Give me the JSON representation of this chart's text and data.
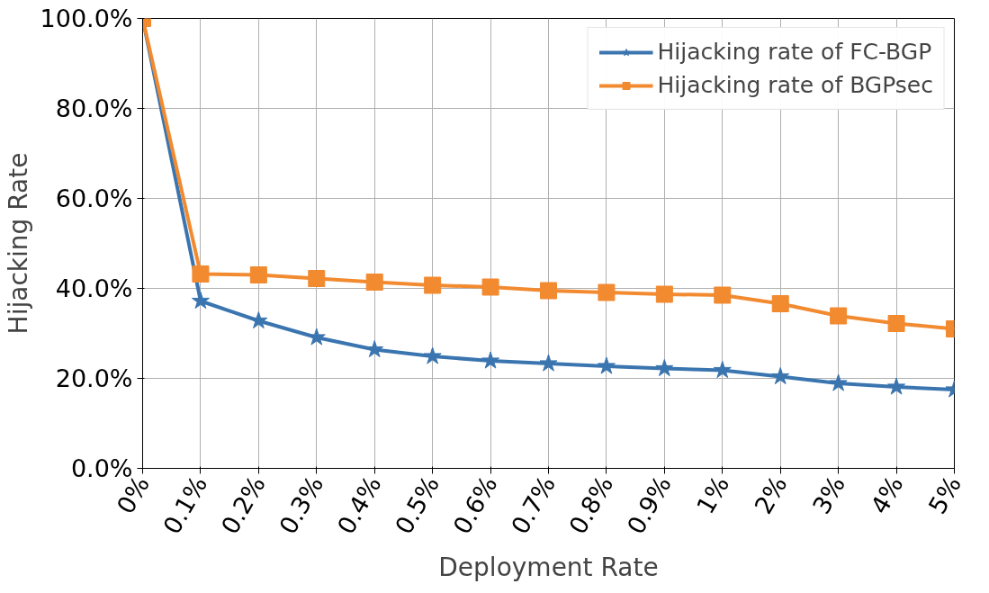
{
  "chart_data": {
    "type": "line",
    "xlabel": "Deployment Rate",
    "ylabel": "Hijacking Rate",
    "categories": [
      "0%",
      "0.1%",
      "0.2%",
      "0.3%",
      "0.4%",
      "0.5%",
      "0.6%",
      "0.7%",
      "0.8%",
      "0.9%",
      "1%",
      "2%",
      "3%",
      "4%",
      "5%"
    ],
    "series": [
      {
        "name": "Hijacking rate of FC-BGP",
        "color": "#3a75b0",
        "marker": "star",
        "values": [
          100,
          37.2,
          32.8,
          29.1,
          26.4,
          24.9,
          23.9,
          23.3,
          22.7,
          22.2,
          21.8,
          20.4,
          18.9,
          18.1,
          17.5
        ]
      },
      {
        "name": "Hijacking rate of BGPsec",
        "color": "#f28a30",
        "marker": "square",
        "values": [
          100,
          43.2,
          43.0,
          42.2,
          41.4,
          40.7,
          40.3,
          39.5,
          39.1,
          38.7,
          38.5,
          36.6,
          33.9,
          32.2,
          31.0
        ]
      }
    ],
    "ylim": [
      0,
      100
    ],
    "yticks": [
      {
        "value": 0,
        "label": "0.0%"
      },
      {
        "value": 20,
        "label": "20.0%"
      },
      {
        "value": 40,
        "label": "40.0%"
      },
      {
        "value": 60,
        "label": "60.0%"
      },
      {
        "value": 80,
        "label": "80.0%"
      },
      {
        "value": 100,
        "label": "100.0%"
      }
    ],
    "grid": true,
    "legend": "top right",
    "line_style": "solid"
  }
}
